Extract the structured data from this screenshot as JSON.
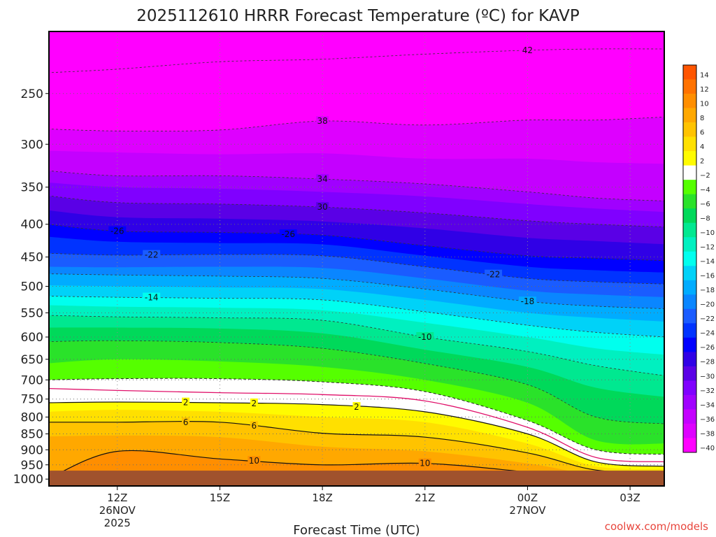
{
  "chart_data": {
    "type": "heatmap",
    "title": "2025112610 HRRR Forecast Temperature (ºC) for KAVP",
    "xlabel": "Forecast Time (UTC)",
    "ylabel": "",
    "credit": "coolwx.com/models",
    "x_ticks": [
      {
        "label": "12Z",
        "sub": "26NOV",
        "sub2": "2025"
      },
      {
        "label": "15Z",
        "sub": "",
        "sub2": ""
      },
      {
        "label": "18Z",
        "sub": "",
        "sub2": ""
      },
      {
        "label": "21Z",
        "sub": "",
        "sub2": ""
      },
      {
        "label": "00Z",
        "sub": "27NOV",
        "sub2": ""
      },
      {
        "label": "03Z",
        "sub": "",
        "sub2": ""
      }
    ],
    "x_range_hours": [
      10,
      28
    ],
    "x_tick_hours": [
      12,
      15,
      18,
      21,
      24,
      27
    ],
    "y_axis": "pressure (hPa), log scale, inverted",
    "y_range": [
      1000,
      200
    ],
    "y_ticks": [
      250,
      300,
      350,
      400,
      450,
      500,
      550,
      600,
      650,
      700,
      750,
      800,
      850,
      900,
      950,
      1000
    ],
    "ground_below_hPa": 970,
    "grid": true,
    "colorbar": {
      "levels": [
        14,
        12,
        10,
        8,
        6,
        4,
        2,
        -2,
        -4,
        -6,
        -8,
        -10,
        -12,
        -14,
        -16,
        -18,
        -20,
        -22,
        -24,
        -26,
        -28,
        -30,
        -32,
        -34,
        -36,
        -38,
        -40
      ],
      "colors": [
        "#ff5500",
        "#ff7200",
        "#ff8e00",
        "#ffa800",
        "#ffc300",
        "#ffe000",
        "#fffb00",
        "#ffffff",
        "#55ff00",
        "#2ae22a",
        "#00d95a",
        "#00e890",
        "#00f0c0",
        "#00ffee",
        "#00d2f8",
        "#00acff",
        "#0a86ff",
        "#1a5cff",
        "#0033ff",
        "#0000ff",
        "#3000e6",
        "#5a00e6",
        "#8000ff",
        "#a000ff",
        "#c400ff",
        "#de00ff",
        "#ff00ff"
      ],
      "position": "right"
    },
    "profiles": [
      {
        "hour": 10,
        "levels": [
          {
            "t": -44,
            "p": 200
          },
          {
            "t": -42,
            "p": 232
          },
          {
            "t": -40,
            "p": 264
          },
          {
            "t": -38,
            "p": 284
          },
          {
            "t": -36,
            "p": 307
          },
          {
            "t": -34,
            "p": 330
          },
          {
            "t": -32,
            "p": 344
          },
          {
            "t": -30,
            "p": 361
          },
          {
            "t": -28,
            "p": 380
          },
          {
            "t": -26,
            "p": 400
          },
          {
            "t": -24,
            "p": 418
          },
          {
            "t": -22,
            "p": 444
          },
          {
            "t": -20,
            "p": 466
          },
          {
            "t": -18,
            "p": 478
          },
          {
            "t": -16,
            "p": 498
          },
          {
            "t": -14,
            "p": 518
          },
          {
            "t": -12,
            "p": 535
          },
          {
            "t": -10,
            "p": 555
          },
          {
            "t": -8,
            "p": 580
          },
          {
            "t": -6,
            "p": 610
          },
          {
            "t": -4,
            "p": 660
          },
          {
            "t": -2,
            "p": 700
          },
          {
            "t": 0,
            "p": 722
          },
          {
            "t": 2,
            "p": 760
          },
          {
            "t": 4,
            "p": 785
          },
          {
            "t": 6,
            "p": 815
          },
          {
            "t": 8,
            "p": 858
          },
          {
            "t": 10,
            "p": 1000
          }
        ]
      },
      {
        "hour": 12,
        "levels": [
          {
            "t": -44,
            "p": 200
          },
          {
            "t": -42,
            "p": 229
          },
          {
            "t": -40,
            "p": 262
          },
          {
            "t": -38,
            "p": 286
          },
          {
            "t": -36,
            "p": 309
          },
          {
            "t": -34,
            "p": 336
          },
          {
            "t": -32,
            "p": 350
          },
          {
            "t": -30,
            "p": 370
          },
          {
            "t": -28,
            "p": 390
          },
          {
            "t": -26,
            "p": 410
          },
          {
            "t": -24,
            "p": 426
          },
          {
            "t": -22,
            "p": 447
          },
          {
            "t": -20,
            "p": 467
          },
          {
            "t": -18,
            "p": 480
          },
          {
            "t": -16,
            "p": 500
          },
          {
            "t": -14,
            "p": 520
          },
          {
            "t": -12,
            "p": 538
          },
          {
            "t": -10,
            "p": 558
          },
          {
            "t": -8,
            "p": 580
          },
          {
            "t": -6,
            "p": 608
          },
          {
            "t": -4,
            "p": 650
          },
          {
            "t": -2,
            "p": 697
          },
          {
            "t": 0,
            "p": 727
          },
          {
            "t": 2,
            "p": 758
          },
          {
            "t": 4,
            "p": 780
          },
          {
            "t": 6,
            "p": 815
          },
          {
            "t": 8,
            "p": 855
          },
          {
            "t": 10,
            "p": 905
          },
          {
            "t": 12,
            "p": 1000
          }
        ]
      },
      {
        "hour": 15,
        "levels": [
          {
            "t": -44,
            "p": 200
          },
          {
            "t": -42,
            "p": 223
          },
          {
            "t": -40,
            "p": 258
          },
          {
            "t": -38,
            "p": 285
          },
          {
            "t": -36,
            "p": 311
          },
          {
            "t": -34,
            "p": 336
          },
          {
            "t": -32,
            "p": 352
          },
          {
            "t": -30,
            "p": 372
          },
          {
            "t": -28,
            "p": 392
          },
          {
            "t": -26,
            "p": 412
          },
          {
            "t": -24,
            "p": 428
          },
          {
            "t": -22,
            "p": 446
          },
          {
            "t": -20,
            "p": 466
          },
          {
            "t": -18,
            "p": 482
          },
          {
            "t": -16,
            "p": 502
          },
          {
            "t": -14,
            "p": 522
          },
          {
            "t": -12,
            "p": 540
          },
          {
            "t": -10,
            "p": 560
          },
          {
            "t": -8,
            "p": 582
          },
          {
            "t": -6,
            "p": 612
          },
          {
            "t": -4,
            "p": 655
          },
          {
            "t": -2,
            "p": 697
          },
          {
            "t": 0,
            "p": 733
          },
          {
            "t": 2,
            "p": 760
          },
          {
            "t": 4,
            "p": 785
          },
          {
            "t": 6,
            "p": 815
          },
          {
            "t": 8,
            "p": 860
          },
          {
            "t": 10,
            "p": 930
          },
          {
            "t": 12,
            "p": 1000
          }
        ]
      },
      {
        "hour": 18,
        "levels": [
          {
            "t": -44,
            "p": 200
          },
          {
            "t": -42,
            "p": 221
          },
          {
            "t": -40,
            "p": 245
          },
          {
            "t": -38,
            "p": 276
          },
          {
            "t": -36,
            "p": 310
          },
          {
            "t": -34,
            "p": 340
          },
          {
            "t": -32,
            "p": 356
          },
          {
            "t": -30,
            "p": 376
          },
          {
            "t": -28,
            "p": 396
          },
          {
            "t": -26,
            "p": 416
          },
          {
            "t": -24,
            "p": 430
          },
          {
            "t": -22,
            "p": 448
          },
          {
            "t": -20,
            "p": 468
          },
          {
            "t": -18,
            "p": 486
          },
          {
            "t": -16,
            "p": 505
          },
          {
            "t": -14,
            "p": 525
          },
          {
            "t": -12,
            "p": 545
          },
          {
            "t": -10,
            "p": 565
          },
          {
            "t": -8,
            "p": 592
          },
          {
            "t": -6,
            "p": 625
          },
          {
            "t": -4,
            "p": 668
          },
          {
            "t": -2,
            "p": 705
          },
          {
            "t": 0,
            "p": 738
          },
          {
            "t": 2,
            "p": 765
          },
          {
            "t": 4,
            "p": 800
          },
          {
            "t": 6,
            "p": 848
          },
          {
            "t": 8,
            "p": 890
          },
          {
            "t": 10,
            "p": 950
          },
          {
            "t": 12,
            "p": 1000
          }
        ]
      },
      {
        "hour": 21,
        "levels": [
          {
            "t": -44,
            "p": 200
          },
          {
            "t": -42,
            "p": 217
          },
          {
            "t": -40,
            "p": 240
          },
          {
            "t": -38,
            "p": 280
          },
          {
            "t": -36,
            "p": 316
          },
          {
            "t": -34,
            "p": 346
          },
          {
            "t": -32,
            "p": 362
          },
          {
            "t": -30,
            "p": 384
          },
          {
            "t": -28,
            "p": 406
          },
          {
            "t": -26,
            "p": 432
          },
          {
            "t": -24,
            "p": 448
          },
          {
            "t": -22,
            "p": 466
          },
          {
            "t": -20,
            "p": 486
          },
          {
            "t": -18,
            "p": 505
          },
          {
            "t": -16,
            "p": 525
          },
          {
            "t": -14,
            "p": 548
          },
          {
            "t": -12,
            "p": 570
          },
          {
            "t": -10,
            "p": 600
          },
          {
            "t": -8,
            "p": 628
          },
          {
            "t": -6,
            "p": 660
          },
          {
            "t": -4,
            "p": 700
          },
          {
            "t": -2,
            "p": 730
          },
          {
            "t": 0,
            "p": 755
          },
          {
            "t": 2,
            "p": 785
          },
          {
            "t": 4,
            "p": 815
          },
          {
            "t": 6,
            "p": 860
          },
          {
            "t": 8,
            "p": 905
          },
          {
            "t": 10,
            "p": 945
          },
          {
            "t": 12,
            "p": 970
          },
          {
            "t": 14,
            "p": 1000
          }
        ]
      },
      {
        "hour": 24,
        "levels": [
          {
            "t": -44,
            "p": 200
          },
          {
            "t": -42,
            "p": 214
          },
          {
            "t": -40,
            "p": 240
          },
          {
            "t": -38,
            "p": 275
          },
          {
            "t": -36,
            "p": 316
          },
          {
            "t": -34,
            "p": 356
          },
          {
            "t": -32,
            "p": 372
          },
          {
            "t": -30,
            "p": 395
          },
          {
            "t": -28,
            "p": 420
          },
          {
            "t": -26,
            "p": 448
          },
          {
            "t": -24,
            "p": 466
          },
          {
            "t": -22,
            "p": 486
          },
          {
            "t": -20,
            "p": 508
          },
          {
            "t": -18,
            "p": 528
          },
          {
            "t": -16,
            "p": 550
          },
          {
            "t": -14,
            "p": 575
          },
          {
            "t": -12,
            "p": 600
          },
          {
            "t": -10,
            "p": 632
          },
          {
            "t": -8,
            "p": 668
          },
          {
            "t": -6,
            "p": 712
          },
          {
            "t": -4,
            "p": 760
          },
          {
            "t": -2,
            "p": 810
          },
          {
            "t": 0,
            "p": 830
          },
          {
            "t": 2,
            "p": 850
          },
          {
            "t": 4,
            "p": 880
          },
          {
            "t": 6,
            "p": 910
          },
          {
            "t": 8,
            "p": 945
          },
          {
            "t": 10,
            "p": 975
          },
          {
            "t": 12,
            "p": 1000
          }
        ]
      },
      {
        "hour": 26,
        "levels": [
          {
            "t": -44,
            "p": 200
          },
          {
            "t": -42,
            "p": 213
          },
          {
            "t": -40,
            "p": 240
          },
          {
            "t": -38,
            "p": 275
          },
          {
            "t": -36,
            "p": 320
          },
          {
            "t": -34,
            "p": 364
          },
          {
            "t": -32,
            "p": 378
          },
          {
            "t": -30,
            "p": 400
          },
          {
            "t": -28,
            "p": 425
          },
          {
            "t": -26,
            "p": 452
          },
          {
            "t": -24,
            "p": 472
          },
          {
            "t": -22,
            "p": 492
          },
          {
            "t": -20,
            "p": 515
          },
          {
            "t": -18,
            "p": 537
          },
          {
            "t": -16,
            "p": 560
          },
          {
            "t": -14,
            "p": 590
          },
          {
            "t": -12,
            "p": 625
          },
          {
            "t": -10,
            "p": 665
          },
          {
            "t": -8,
            "p": 720
          },
          {
            "t": -6,
            "p": 800
          },
          {
            "t": -4,
            "p": 870
          },
          {
            "t": -2,
            "p": 900
          },
          {
            "t": 0,
            "p": 925
          },
          {
            "t": 2,
            "p": 940
          },
          {
            "t": 4,
            "p": 955
          },
          {
            "t": 6,
            "p": 968
          },
          {
            "t": 8,
            "p": 985
          },
          {
            "t": 10,
            "p": 1000
          }
        ]
      },
      {
        "hour": 28,
        "levels": [
          {
            "t": -44,
            "p": 200
          },
          {
            "t": -42,
            "p": 213
          },
          {
            "t": -40,
            "p": 238
          },
          {
            "t": -38,
            "p": 272
          },
          {
            "t": -36,
            "p": 322
          },
          {
            "t": -34,
            "p": 368
          },
          {
            "t": -32,
            "p": 383
          },
          {
            "t": -30,
            "p": 404
          },
          {
            "t": -28,
            "p": 430
          },
          {
            "t": -26,
            "p": 456
          },
          {
            "t": -24,
            "p": 476
          },
          {
            "t": -22,
            "p": 496
          },
          {
            "t": -20,
            "p": 520
          },
          {
            "t": -18,
            "p": 542
          },
          {
            "t": -16,
            "p": 568
          },
          {
            "t": -14,
            "p": 600
          },
          {
            "t": -12,
            "p": 640
          },
          {
            "t": -10,
            "p": 690
          },
          {
            "t": -8,
            "p": 745
          },
          {
            "t": -6,
            "p": 820
          },
          {
            "t": -4,
            "p": 880
          },
          {
            "t": -2,
            "p": 915
          },
          {
            "t": 0,
            "p": 940
          },
          {
            "t": 2,
            "p": 955
          },
          {
            "t": 4,
            "p": 965
          },
          {
            "t": 6,
            "p": 975
          },
          {
            "t": 8,
            "p": 990
          },
          {
            "t": 10,
            "p": 1000
          }
        ]
      }
    ],
    "contour_labels": [
      {
        "text": "38",
        "t": -38,
        "hour": 18
      },
      {
        "text": "34",
        "t": -34,
        "hour": 18
      },
      {
        "text": "30",
        "t": -30,
        "hour": 18
      },
      {
        "text": "42",
        "t": -42,
        "hour": 24
      },
      {
        "text": "-26",
        "t": -26,
        "hour": 12
      },
      {
        "text": "-26",
        "t": -26,
        "hour": 17
      },
      {
        "text": "-22",
        "t": -22,
        "hour": 13
      },
      {
        "text": "-22",
        "t": -22,
        "hour": 23
      },
      {
        "text": "-14",
        "t": -14,
        "hour": 13
      },
      {
        "text": "-18",
        "t": -18,
        "hour": 24
      },
      {
        "text": "-10",
        "t": -10,
        "hour": 21
      },
      {
        "text": "6",
        "t": 6,
        "hour": 16
      },
      {
        "text": "2",
        "t": 2,
        "hour": 16
      },
      {
        "text": "2",
        "t": 2,
        "hour": 14
      },
      {
        "text": "2",
        "t": 2,
        "hour": 19
      },
      {
        "text": "6",
        "t": 6,
        "hour": 14
      },
      {
        "text": "10",
        "t": 10,
        "hour": 16
      },
      {
        "text": "10",
        "t": 10,
        "hour": 21
      }
    ]
  }
}
